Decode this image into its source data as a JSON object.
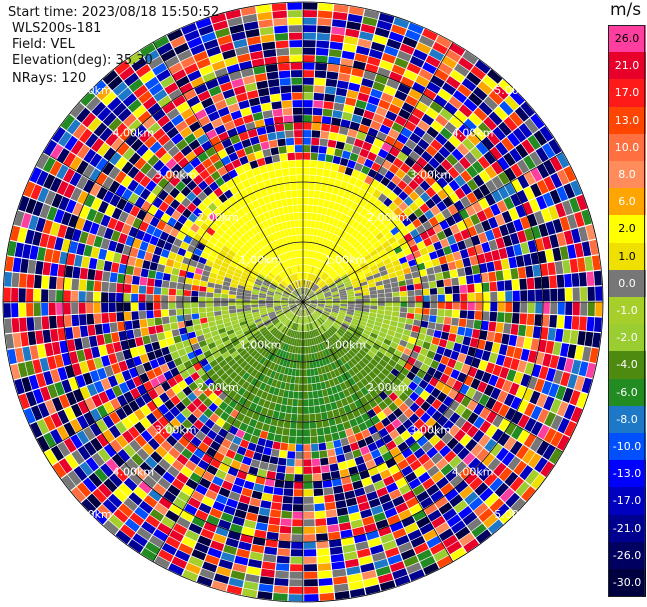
{
  "header": {
    "start_time": "Start time: 2023/08/18 15:50:52",
    "instrument": "WLS200s-181",
    "field": "Field: VEL",
    "elevation": "Elevation(deg): 35.30",
    "nrays": "NRays: 120"
  },
  "colorbar": {
    "unit": "m/s",
    "bins": [
      {
        "label": "26.0",
        "color": "#ff3fa0",
        "labelColor": "dark"
      },
      {
        "label": "21.0",
        "color": "#e8002a",
        "labelColor": "light"
      },
      {
        "label": "17.0",
        "color": "#ff1a1a",
        "labelColor": "light"
      },
      {
        "label": "13.0",
        "color": "#ff4500",
        "labelColor": "light"
      },
      {
        "label": "10.0",
        "color": "#ff6f3f",
        "labelColor": "light"
      },
      {
        "label": "8.0",
        "color": "#ff8c5a",
        "labelColor": "light"
      },
      {
        "label": "6.0",
        "color": "#ffa500",
        "labelColor": "light"
      },
      {
        "label": "2.0",
        "color": "#ffff00",
        "labelColor": "dark"
      },
      {
        "label": "1.0",
        "color": "#f0e000",
        "labelColor": "dark"
      },
      {
        "label": "0.0",
        "color": "#777777",
        "labelColor": "light"
      },
      {
        "label": "-1.0",
        "color": "#a7cf2b",
        "labelColor": "light"
      },
      {
        "label": "-2.0",
        "color": "#9acd32",
        "labelColor": "light"
      },
      {
        "label": "-4.0",
        "color": "#4f8a10",
        "labelColor": "light"
      },
      {
        "label": "-6.0",
        "color": "#228b22",
        "labelColor": "light"
      },
      {
        "label": "-8.0",
        "color": "#1e78c8",
        "labelColor": "light"
      },
      {
        "label": "-10.0",
        "color": "#0050ff",
        "labelColor": "light"
      },
      {
        "label": "-13.0",
        "color": "#0000ff",
        "labelColor": "light"
      },
      {
        "label": "-17.0",
        "color": "#0000c0",
        "labelColor": "light"
      },
      {
        "label": "-21.0",
        "color": "#000090",
        "labelColor": "light"
      },
      {
        "label": "-26.0",
        "color": "#000060",
        "labelColor": "light"
      },
      {
        "label": "-30.0",
        "color": "#000040",
        "labelColor": "light"
      }
    ]
  },
  "chart_data": {
    "type": "heatmap",
    "subtype": "polar PPI (plan position indicator)",
    "field": "VEL",
    "units": "m/s",
    "elevation_deg": 35.3,
    "n_rays": 120,
    "range_ring_labels": [
      "1.00km",
      "2.00km",
      "3.00km",
      "4.00km",
      "5.00km"
    ],
    "range_rings_km": [
      1,
      2,
      3,
      4,
      5
    ],
    "max_range_km": 5,
    "color_levels": [
      26.0,
      21.0,
      17.0,
      13.0,
      10.0,
      8.0,
      6.0,
      2.0,
      1.0,
      0.0,
      -1.0,
      -2.0,
      -4.0,
      -6.0,
      -8.0,
      -10.0,
      -13.0,
      -17.0,
      -21.0,
      -26.0,
      -30.0
    ],
    "pattern": {
      "inner_north": "positive velocities (~1 to 6 m/s, yellow/orange)",
      "inner_south": "negative velocities (~-1 to -6 m/s, green)",
      "center": "near zero (grey)",
      "outer_ranges": "noise (random values over full scale)"
    },
    "grid": true
  }
}
